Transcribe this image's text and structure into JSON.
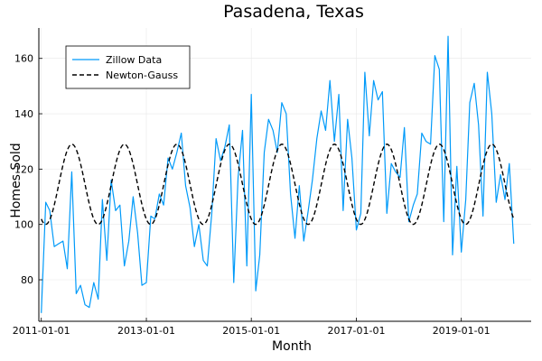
{
  "chart_data": {
    "type": "line",
    "title": "Pasadena, Texas",
    "xlabel": "Month",
    "ylabel": "Homes Sold",
    "x_is_date": true,
    "xlim": [
      "2010-12-15",
      "2020-05-01"
    ],
    "ylim": [
      65,
      171
    ],
    "x_ticks": [
      "2011-01-01",
      "2013-01-01",
      "2015-01-01",
      "2017-01-01",
      "2019-01-01"
    ],
    "y_ticks": [
      80,
      100,
      120,
      140,
      160
    ],
    "grid": true,
    "legend_position": "top-left",
    "series": [
      {
        "name": "Zillow Data",
        "color": "#009AF9",
        "style": "solid",
        "x_start": "2011-01-01",
        "frequency": "monthly",
        "values": [
          68,
          108,
          105,
          92,
          93,
          94,
          84,
          119,
          75,
          78,
          71,
          70,
          79,
          73,
          109,
          87,
          116,
          105,
          107,
          85,
          94,
          110,
          97,
          78,
          79,
          103,
          102,
          111,
          107,
          124,
          120,
          126,
          133,
          114,
          106,
          92,
          100,
          87,
          85,
          104,
          131,
          123,
          128,
          136,
          79,
          117,
          134,
          85,
          147,
          76,
          89,
          126,
          138,
          134,
          126,
          144,
          140,
          111,
          95,
          114,
          94,
          105,
          116,
          131,
          141,
          134,
          152,
          130,
          147,
          105,
          138,
          124,
          98,
          104,
          155,
          132,
          152,
          145,
          148,
          104,
          122,
          119,
          117,
          135,
          101,
          107,
          111,
          133,
          130,
          129,
          161,
          156,
          101,
          168,
          89,
          121,
          90,
          109,
          144,
          151,
          136,
          103,
          155,
          140,
          108,
          118,
          109,
          122,
          93
        ]
      },
      {
        "name": "Newton-Gauss",
        "color": "#000000",
        "style": "dashed",
        "model": {
          "form": "sinusoid",
          "mean": 114.5,
          "amplitude": 14.5,
          "period_months": 12,
          "phase_peak_month": 7
        }
      }
    ]
  }
}
